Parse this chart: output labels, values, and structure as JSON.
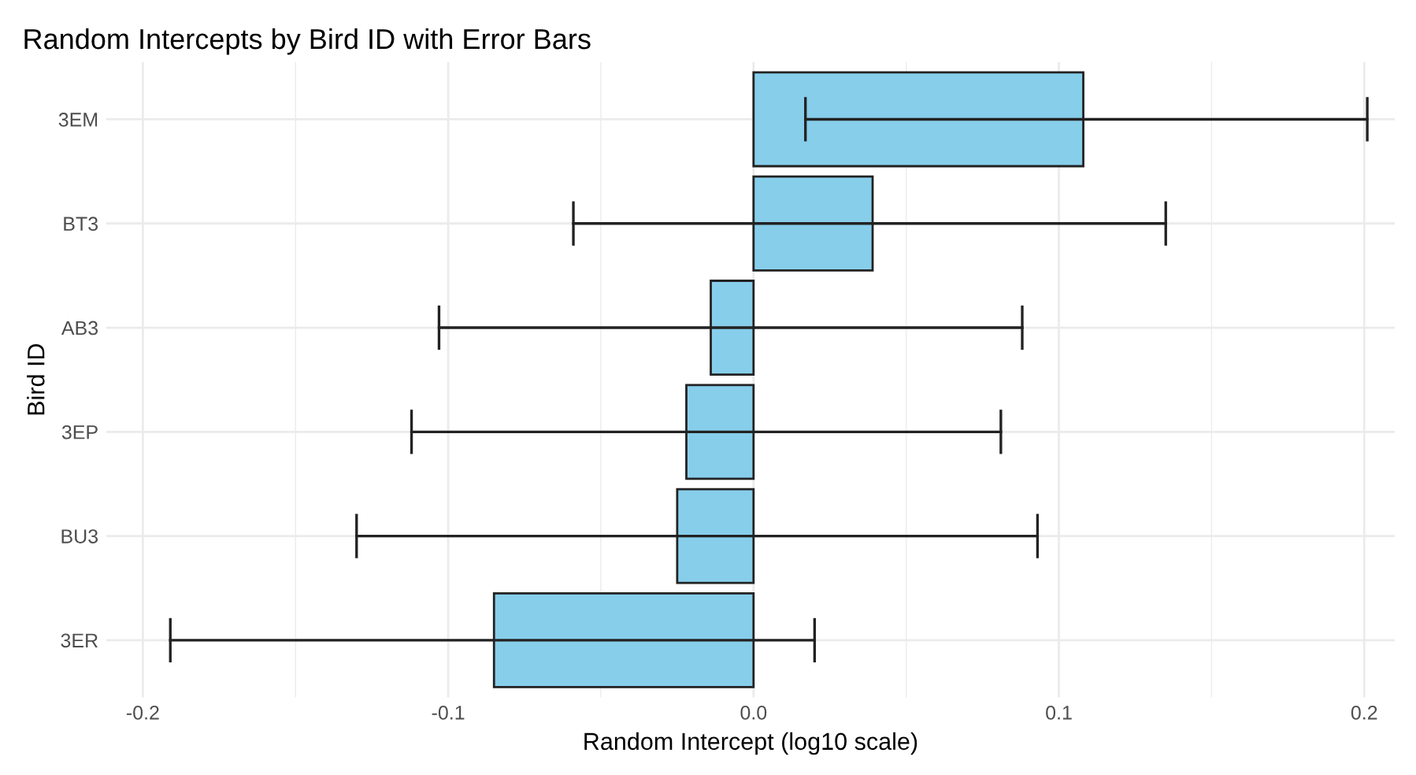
{
  "chart_data": {
    "type": "bar",
    "orientation": "horizontal",
    "title": "Random Intercepts by Bird ID with Error Bars",
    "xlabel": "Random Intercept (log10 scale)",
    "ylabel": "Bird ID",
    "categories": [
      "3EM",
      "BT3",
      "AB3",
      "3EP",
      "BU3",
      "3ER"
    ],
    "values": [
      0.108,
      0.039,
      -0.014,
      -0.022,
      -0.025,
      -0.085
    ],
    "errors": [
      [
        0.017,
        0.201
      ],
      [
        -0.059,
        0.135
      ],
      [
        -0.103,
        0.088
      ],
      [
        -0.112,
        0.081
      ],
      [
        -0.13,
        0.093
      ],
      [
        -0.191,
        0.02
      ]
    ],
    "color": "#87ceeb",
    "xlim": [
      -0.212,
      0.21
    ],
    "xticks": [
      {
        "value": -0.2,
        "label": "-0.2"
      },
      {
        "value": -0.15,
        "label": null
      },
      {
        "value": -0.1,
        "label": "-0.1"
      },
      {
        "value": -0.05,
        "label": null
      },
      {
        "value": 0,
        "label": "0.0"
      },
      {
        "value": 0.05,
        "label": null
      },
      {
        "value": 0.1,
        "label": "0.1"
      },
      {
        "value": 0.15,
        "label": null
      },
      {
        "value": 0.2,
        "label": "0.2"
      }
    ],
    "grid": true
  }
}
